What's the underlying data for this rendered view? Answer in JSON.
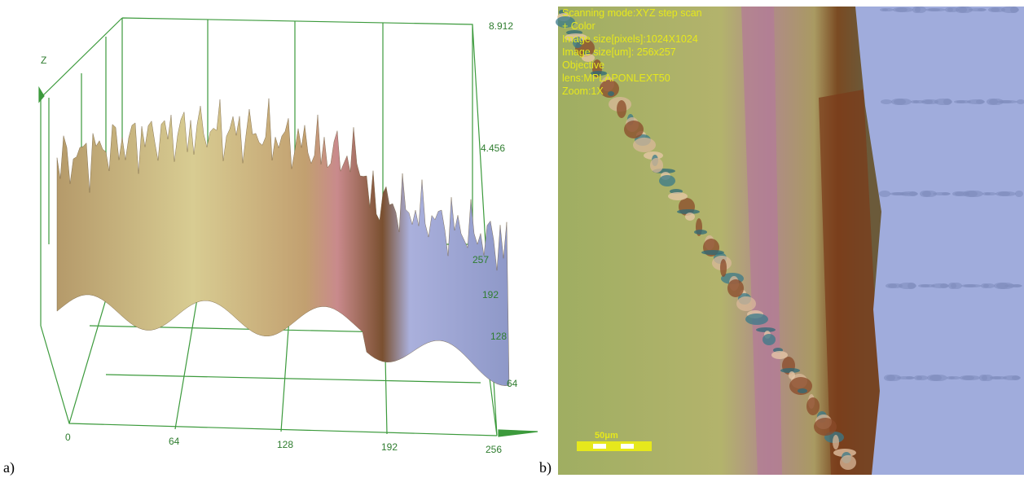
{
  "panel_a": {
    "label": "a)",
    "z_axis": {
      "title": "Z",
      "ticks": [
        "8.912",
        "4.456"
      ]
    },
    "y_axis": {
      "ticks": [
        "257",
        "192",
        "128",
        "64"
      ]
    },
    "x_axis": {
      "ticks": [
        "0",
        "64",
        "128",
        "192",
        "256"
      ]
    }
  },
  "panel_b": {
    "label": "b)",
    "info": [
      "Scanning mode:XYZ step scan",
      "+ Color",
      "Image size[pixels]:1024X1024",
      "Image size[um]: 256x257",
      "Objective",
      "lens:MPLAPONLEXT50",
      "Zoom:1X"
    ],
    "scale_bar": "50μm"
  }
}
